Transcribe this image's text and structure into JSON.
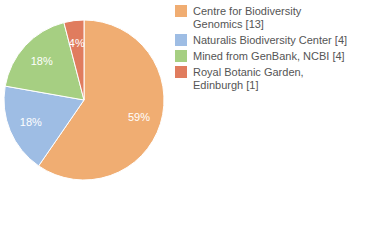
{
  "chart_data": {
    "type": "pie",
    "categories": [
      "Centre for Biodiversity Genomics [13]",
      "Naturalis Biodiversity Center [4]",
      "Mined from GenBank, NCBI [4]",
      "Royal Botanic Garden, Edinburgh [1]"
    ],
    "values": [
      59,
      18,
      18,
      4
    ],
    "value_labels": [
      "59%",
      "18%",
      "18%",
      "4%"
    ],
    "colors": [
      "#f0ad72",
      "#9ebde4",
      "#a6cf82",
      "#e07c5e"
    ],
    "data_labels": true,
    "legend": "right"
  }
}
